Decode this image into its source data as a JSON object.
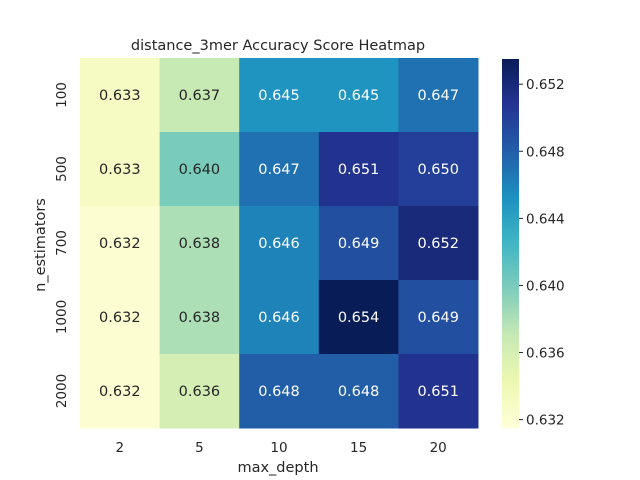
{
  "chart_data": {
    "type": "heatmap",
    "title": "distance_3mer Accuracy Score Heatmap",
    "xlabel": "max_depth",
    "ylabel": "n_estimators",
    "x_categories": [
      "2",
      "5",
      "10",
      "15",
      "20"
    ],
    "y_categories": [
      "100",
      "500",
      "700",
      "1000",
      "2000"
    ],
    "values": [
      [
        0.633,
        0.637,
        0.645,
        0.645,
        0.647
      ],
      [
        0.633,
        0.64,
        0.647,
        0.651,
        0.65
      ],
      [
        0.632,
        0.638,
        0.646,
        0.649,
        0.652
      ],
      [
        0.632,
        0.638,
        0.646,
        0.654,
        0.649
      ],
      [
        0.632,
        0.636,
        0.648,
        0.648,
        0.651
      ]
    ],
    "color_range": [
      0.6315,
      0.6535
    ],
    "colorbar_ticks": [
      "0.632",
      "0.636",
      "0.640",
      "0.644",
      "0.648",
      "0.652"
    ],
    "colormap": "YlGnBu",
    "colormap_stops": [
      "#ffffd9",
      "#edf8b1",
      "#c7e9b4",
      "#7fcdbb",
      "#41b6c4",
      "#1d91c0",
      "#225ea8",
      "#253494",
      "#081d58"
    ]
  }
}
